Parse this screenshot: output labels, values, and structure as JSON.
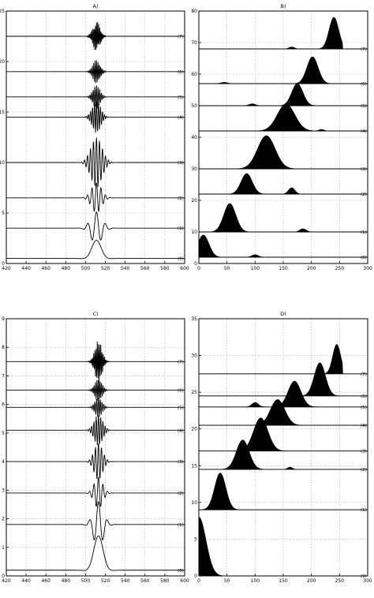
{
  "chart_data": [
    {
      "type": "line",
      "title": "A)",
      "xlim": [
        420,
        600
      ],
      "ylim": [
        0,
        25
      ],
      "xticks": [
        420,
        440,
        460,
        480,
        500,
        520,
        540,
        560,
        580,
        600
      ],
      "yticks": [
        0,
        5,
        10,
        15,
        20,
        25
      ],
      "grid": true,
      "series": [
        {
          "name": "(0)",
          "offset": 0.5,
          "center": 511,
          "amp": 1.8,
          "freq": 1,
          "width": 8
        },
        {
          "name": "(1)",
          "offset": 3.5,
          "center": 511,
          "amp": 1.6,
          "freq": 2,
          "width": 8
        },
        {
          "name": "(2)",
          "offset": 6.5,
          "center": 511,
          "amp": 1.5,
          "freq": 4,
          "width": 7
        },
        {
          "name": "(3)",
          "offset": 10,
          "center": 511,
          "amp": 2.5,
          "freq": 6,
          "width": 8
        },
        {
          "name": "(4)",
          "offset": 14.5,
          "center": 511,
          "amp": 1.6,
          "freq": 9,
          "width": 6
        },
        {
          "name": "(5)",
          "offset": 16.5,
          "center": 511,
          "amp": 1.2,
          "freq": 11,
          "width": 5
        },
        {
          "name": "(6)",
          "offset": 19,
          "center": 511,
          "amp": 1.2,
          "freq": 13,
          "width": 5
        },
        {
          "name": "(7)",
          "offset": 22.5,
          "center": 511,
          "amp": 1.5,
          "freq": 16,
          "width": 5
        }
      ]
    },
    {
      "type": "area",
      "title": "B)",
      "xlim": [
        0,
        300
      ],
      "ylim": [
        0,
        80
      ],
      "xticks": [
        0,
        50,
        100,
        150,
        200,
        250,
        300
      ],
      "yticks": [
        0,
        10,
        20,
        30,
        40,
        50,
        60,
        70,
        80
      ],
      "grid": true,
      "series": [
        {
          "name": "(0)",
          "offset": 2,
          "peaks": [
            {
              "c": 8,
              "w": 14,
              "h": 7
            },
            {
              "c": 100,
              "w": 8,
              "h": 0.8
            }
          ]
        },
        {
          "name": "(1)",
          "offset": 10,
          "peaks": [
            {
              "c": 55,
              "w": 15,
              "h": 9
            },
            {
              "c": 185,
              "w": 8,
              "h": 1
            }
          ]
        },
        {
          "name": "(2)",
          "offset": 22,
          "peaks": [
            {
              "c": 85,
              "w": 14,
              "h": 6.5
            },
            {
              "c": 165,
              "w": 8,
              "h": 2
            }
          ]
        },
        {
          "name": "(3)",
          "offset": 30,
          "peaks": [
            {
              "c": 120,
              "w": 22,
              "h": 10.5
            }
          ]
        },
        {
          "name": "(4)",
          "offset": 42,
          "peaks": [
            {
              "c": 155,
              "w": 22,
              "h": 8.5
            },
            {
              "c": 218,
              "w": 6,
              "h": 0.5
            }
          ]
        },
        {
          "name": "(5)",
          "offset": 50,
          "peaks": [
            {
              "c": 175,
              "w": 14,
              "h": 7
            },
            {
              "c": 95,
              "w": 8,
              "h": 0.6
            }
          ]
        },
        {
          "name": "(6)",
          "offset": 57,
          "peaks": [
            {
              "c": 202,
              "w": 14,
              "h": 8.5
            },
            {
              "c": 45,
              "w": 8,
              "h": 0.4
            }
          ]
        },
        {
          "name": "(7)",
          "offset": 68,
          "peaks": [
            {
              "c": 240,
              "w": 12,
              "h": 10
            },
            {
              "c": 165,
              "w": 7,
              "h": 0.6
            }
          ]
        }
      ]
    },
    {
      "type": "line",
      "title": "C)",
      "xlim": [
        420,
        600
      ],
      "ylim": [
        0,
        9
      ],
      "xticks": [
        420,
        440,
        460,
        480,
        500,
        520,
        540,
        560,
        580,
        600
      ],
      "yticks": [
        0,
        1,
        2,
        3,
        4,
        5,
        6,
        7,
        8,
        9
      ],
      "grid": true,
      "series": [
        {
          "name": "(0)",
          "offset": 0.2,
          "center": 513,
          "amp": 1.2,
          "freq": 1,
          "width": 8
        },
        {
          "name": "(1)",
          "offset": 1.8,
          "center": 513,
          "amp": 0.8,
          "freq": 2,
          "width": 7
        },
        {
          "name": "(2)",
          "offset": 2.9,
          "center": 513,
          "amp": 0.55,
          "freq": 4,
          "width": 6
        },
        {
          "name": "(3)",
          "offset": 4.0,
          "center": 513,
          "amp": 0.65,
          "freq": 6,
          "width": 6
        },
        {
          "name": "(4)",
          "offset": 5.1,
          "center": 513,
          "amp": 0.55,
          "freq": 8,
          "width": 6
        },
        {
          "name": "(5)",
          "offset": 5.9,
          "center": 513,
          "amp": 0.35,
          "freq": 10,
          "width": 5
        },
        {
          "name": "(6)",
          "offset": 6.5,
          "center": 513,
          "amp": 0.4,
          "freq": 12,
          "width": 5
        },
        {
          "name": "(7)",
          "offset": 7.5,
          "center": 513,
          "amp": 0.75,
          "freq": 15,
          "width": 5
        }
      ]
    },
    {
      "type": "area",
      "title": "D)",
      "xlim": [
        0,
        300
      ],
      "ylim": [
        0,
        35
      ],
      "xticks": [
        0,
        50,
        100,
        150,
        200,
        250,
        300
      ],
      "yticks": [
        0,
        5,
        10,
        15,
        20,
        25,
        30,
        35
      ],
      "grid": true,
      "series": [
        {
          "name": "(0)",
          "offset": 0,
          "peaks": [
            {
              "c": 0,
              "w": 18,
              "h": 8
            }
          ]
        },
        {
          "name": "(1)",
          "offset": 9,
          "peaks": [
            {
              "c": 38,
              "w": 14,
              "h": 5
            }
          ]
        },
        {
          "name": "(2)",
          "offset": 14.5,
          "peaks": [
            {
              "c": 78,
              "w": 16,
              "h": 4
            },
            {
              "c": 162,
              "w": 6,
              "h": 0.3
            }
          ]
        },
        {
          "name": "(3)",
          "offset": 17,
          "peaks": [
            {
              "c": 110,
              "w": 18,
              "h": 4.5
            }
          ]
        },
        {
          "name": "(4)",
          "offset": 20.5,
          "peaks": [
            {
              "c": 140,
              "w": 18,
              "h": 3.5
            }
          ]
        },
        {
          "name": "(5)",
          "offset": 23,
          "peaks": [
            {
              "c": 170,
              "w": 16,
              "h": 3.5
            },
            {
              "c": 100,
              "w": 8,
              "h": 0.6
            }
          ]
        },
        {
          "name": "(6)",
          "offset": 24.5,
          "peaks": [
            {
              "c": 215,
              "w": 14,
              "h": 4.5
            }
          ]
        },
        {
          "name": "(7)",
          "offset": 27.5,
          "peaks": [
            {
              "c": 245,
              "w": 10,
              "h": 4
            }
          ]
        }
      ]
    }
  ]
}
